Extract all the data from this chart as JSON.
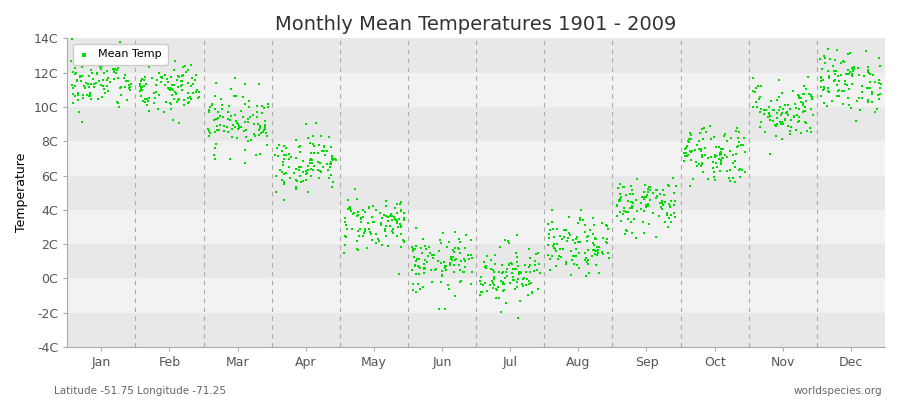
{
  "title": "Monthly Mean Temperatures 1901 - 2009",
  "ylabel": "Temperature",
  "subtitle_left": "Latitude -51.75 Longitude -71.25",
  "subtitle_right": "worldspecies.org",
  "ylim": [
    -4,
    14
  ],
  "yticks": [
    -4,
    -2,
    0,
    2,
    4,
    6,
    8,
    10,
    12,
    14
  ],
  "ytick_labels": [
    "-4C",
    "-2C",
    "0C",
    "2C",
    "4C",
    "6C",
    "8C",
    "10C",
    "12C",
    "14C"
  ],
  "months": [
    "Jan",
    "Feb",
    "Mar",
    "Apr",
    "May",
    "Jun",
    "Jul",
    "Aug",
    "Sep",
    "Oct",
    "Nov",
    "Dec"
  ],
  "dot_color": "#00DD00",
  "dot_size": 3,
  "background_color": "#ffffff",
  "plot_bg_color": "#ebebeb",
  "title_fontsize": 14,
  "axis_label_fontsize": 9,
  "tick_fontsize": 9,
  "legend_fontsize": 8,
  "num_years": 109,
  "mean_temps": [
    11.5,
    11.0,
    9.2,
    6.8,
    3.2,
    0.8,
    0.3,
    1.8,
    4.3,
    7.3,
    9.8,
    11.5
  ],
  "std_temps": [
    0.9,
    0.9,
    0.9,
    0.85,
    0.85,
    0.9,
    0.9,
    0.85,
    0.85,
    0.9,
    0.9,
    0.9
  ],
  "seed": 42,
  "grid_band_colors": [
    "#e8e8e8",
    "#f2f2f2"
  ]
}
